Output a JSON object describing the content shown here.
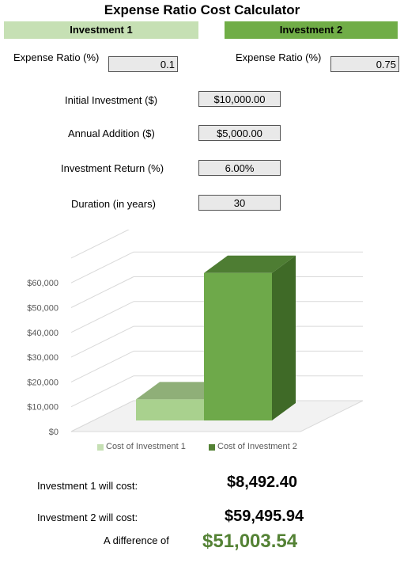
{
  "title": "Expense Ratio Cost Calculator",
  "investment1": {
    "header": "Investment 1",
    "expense_label": "Expense Ratio (%)",
    "expense_value": "0.1"
  },
  "investment2": {
    "header": "Investment 2",
    "expense_label": "Expense Ratio (%)",
    "expense_value": "0.75"
  },
  "inputs": {
    "initial_label": "Initial Investment ($)",
    "initial_value": "$10,000.00",
    "addition_label": "Annual Addition ($)",
    "addition_value": "$5,000.00",
    "return_label": "Investment Return (%)",
    "return_value": "6.00%",
    "duration_label": "Duration (in years)",
    "duration_value": "30"
  },
  "colors": {
    "inv1_light": "#c6e0b4",
    "inv2_dark": "#70ad47",
    "diff_green": "#548235"
  },
  "chart_data": {
    "type": "bar",
    "categories": [
      "Cost of Investment 1",
      "Cost of Investment 2"
    ],
    "values": [
      8492.4,
      59495.94
    ],
    "ylim": [
      0,
      70000
    ],
    "yticks": [
      "$0",
      "$10,000",
      "$20,000",
      "$30,000",
      "$40,000",
      "$50,000",
      "$60,000"
    ],
    "legend": [
      "Cost of Investment 1",
      "Cost of Investment 2"
    ],
    "legend_position": "bottom",
    "grid": true,
    "style": "3d-column"
  },
  "results": {
    "inv1_label": "Investment 1 will cost:",
    "inv1_value": "$8,492.40",
    "inv2_label": "Investment 2 will cost:",
    "inv2_value": "$59,495.94",
    "diff_label": "A difference of",
    "diff_value": "$51,003.54"
  }
}
